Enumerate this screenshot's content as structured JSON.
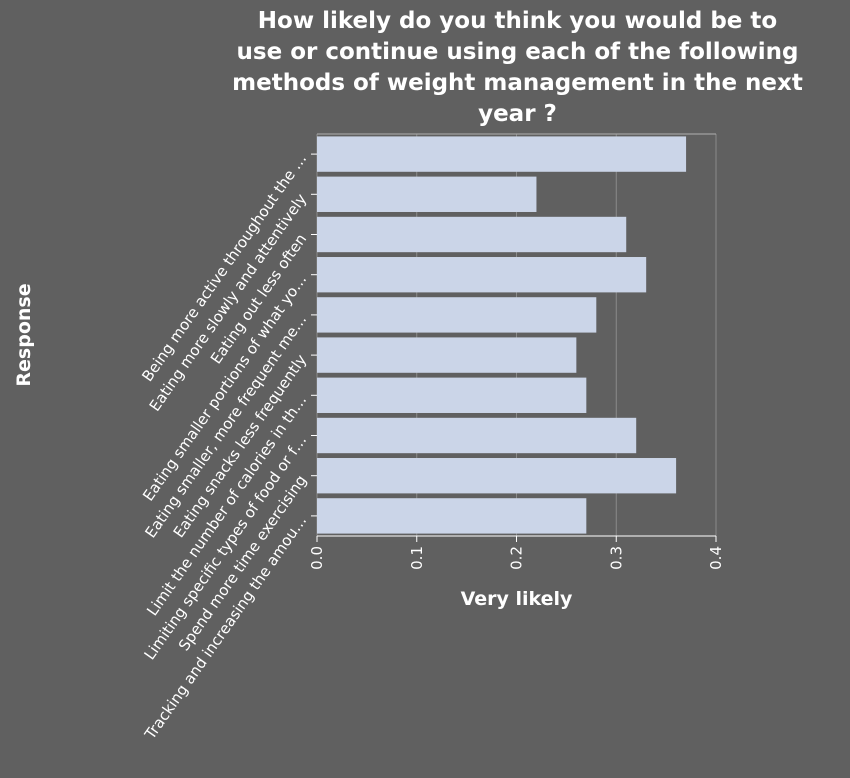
{
  "chart_data": {
    "type": "bar",
    "orientation": "horizontal",
    "title_lines": [
      "How likely do you think you would be to",
      "use or continue using each of the following",
      "methods of weight management in the next",
      "year ?"
    ],
    "xlabel": "Very likely",
    "ylabel": "Response",
    "xlim": [
      0,
      0.4
    ],
    "xticks": [
      "0.0",
      "0.1",
      "0.2",
      "0.3",
      "0.4"
    ],
    "grid": true,
    "colors": {
      "background": "#606060",
      "bar": "#cbd5e8",
      "grid": "#8a8a8a",
      "text": "#ffffff"
    },
    "categories": [
      "Being more active throughout the …",
      "Eating more slowly and attentively",
      "Eating out less often",
      "Eating smaller portions of what yo…",
      "Eating smaller, more frequent me…",
      "Eating snacks less frequently",
      "Limit the number of calories in th…",
      "Limiting specific types of food or f…",
      "Spend more time exercising",
      "Tracking and increasing the amou…"
    ],
    "values": [
      0.37,
      0.22,
      0.31,
      0.33,
      0.28,
      0.26,
      0.27,
      0.32,
      0.36,
      0.27
    ]
  }
}
